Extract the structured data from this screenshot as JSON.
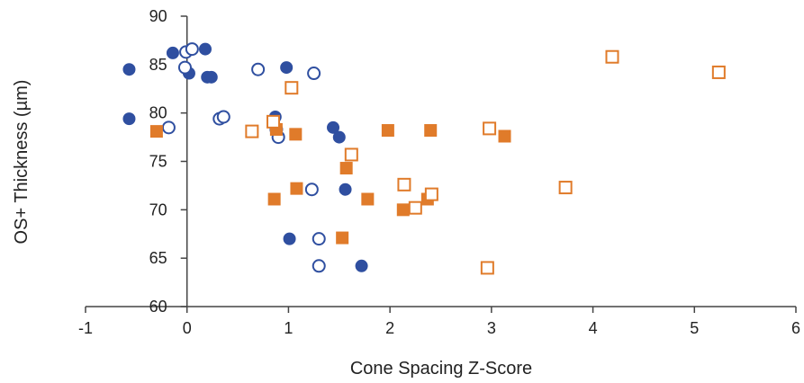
{
  "chart_data": {
    "type": "scatter",
    "title": "",
    "xlabel": "Cone Spacing Z-Score",
    "ylabel": "OS+ Thickness (µm)",
    "xlim": [
      -1,
      6
    ],
    "ylim": [
      60,
      90
    ],
    "xticks": [
      -1,
      0,
      1,
      2,
      3,
      4,
      5,
      6
    ],
    "yticks": [
      60,
      65,
      70,
      75,
      80,
      85,
      90
    ],
    "grid": false,
    "legend": "none",
    "colors": {
      "blue": "#2f4fa0",
      "orange": "#e07b2a",
      "axis": "#444444"
    },
    "series": [
      {
        "marker": "circle-filled",
        "color": "#2f4fa0",
        "points": [
          {
            "x": -0.57,
            "y": 84.5
          },
          {
            "x": -0.57,
            "y": 79.4
          },
          {
            "x": -0.14,
            "y": 86.2
          },
          {
            "x": 0.02,
            "y": 84.1
          },
          {
            "x": 0.18,
            "y": 86.6
          },
          {
            "x": 0.2,
            "y": 83.7
          },
          {
            "x": 0.24,
            "y": 83.7
          },
          {
            "x": 0.87,
            "y": 79.6
          },
          {
            "x": 0.98,
            "y": 84.7
          },
          {
            "x": 1.44,
            "y": 78.5
          },
          {
            "x": 1.5,
            "y": 77.5
          },
          {
            "x": 1.56,
            "y": 72.1
          },
          {
            "x": 1.01,
            "y": 67.0
          },
          {
            "x": 1.72,
            "y": 64.2
          }
        ]
      },
      {
        "marker": "circle-open",
        "color": "#2f4fa0",
        "points": [
          {
            "x": -0.01,
            "y": 86.3
          },
          {
            "x": 0.05,
            "y": 86.6
          },
          {
            "x": -0.02,
            "y": 84.7
          },
          {
            "x": -0.18,
            "y": 78.5
          },
          {
            "x": 0.32,
            "y": 79.4
          },
          {
            "x": 0.36,
            "y": 79.6
          },
          {
            "x": 0.7,
            "y": 84.5
          },
          {
            "x": 1.25,
            "y": 84.1
          },
          {
            "x": 0.88,
            "y": 78.3
          },
          {
            "x": 0.9,
            "y": 77.5
          },
          {
            "x": 1.23,
            "y": 72.1
          },
          {
            "x": 1.3,
            "y": 67.0
          },
          {
            "x": 1.3,
            "y": 64.2
          }
        ]
      },
      {
        "marker": "square-filled",
        "color": "#e07b2a",
        "points": [
          {
            "x": -0.3,
            "y": 78.1
          },
          {
            "x": 0.88,
            "y": 78.3
          },
          {
            "x": 1.07,
            "y": 77.8
          },
          {
            "x": 1.08,
            "y": 72.2
          },
          {
            "x": 0.86,
            "y": 71.1
          },
          {
            "x": 1.53,
            "y": 67.1
          },
          {
            "x": 1.57,
            "y": 74.3
          },
          {
            "x": 1.78,
            "y": 71.1
          },
          {
            "x": 1.98,
            "y": 78.2
          },
          {
            "x": 2.4,
            "y": 78.2
          },
          {
            "x": 3.13,
            "y": 77.6
          },
          {
            "x": 2.13,
            "y": 70.0
          },
          {
            "x": 2.37,
            "y": 71.1
          }
        ]
      },
      {
        "marker": "square-open",
        "color": "#e07b2a",
        "points": [
          {
            "x": 1.03,
            "y": 82.6
          },
          {
            "x": 0.64,
            "y": 78.1
          },
          {
            "x": 0.85,
            "y": 79.1
          },
          {
            "x": 1.62,
            "y": 75.7
          },
          {
            "x": 2.14,
            "y": 72.6
          },
          {
            "x": 2.25,
            "y": 70.2
          },
          {
            "x": 2.41,
            "y": 71.6
          },
          {
            "x": 2.98,
            "y": 78.4
          },
          {
            "x": 2.96,
            "y": 64.0
          },
          {
            "x": 3.73,
            "y": 72.3
          },
          {
            "x": 4.19,
            "y": 85.8
          },
          {
            "x": 5.24,
            "y": 84.2
          }
        ]
      }
    ]
  }
}
